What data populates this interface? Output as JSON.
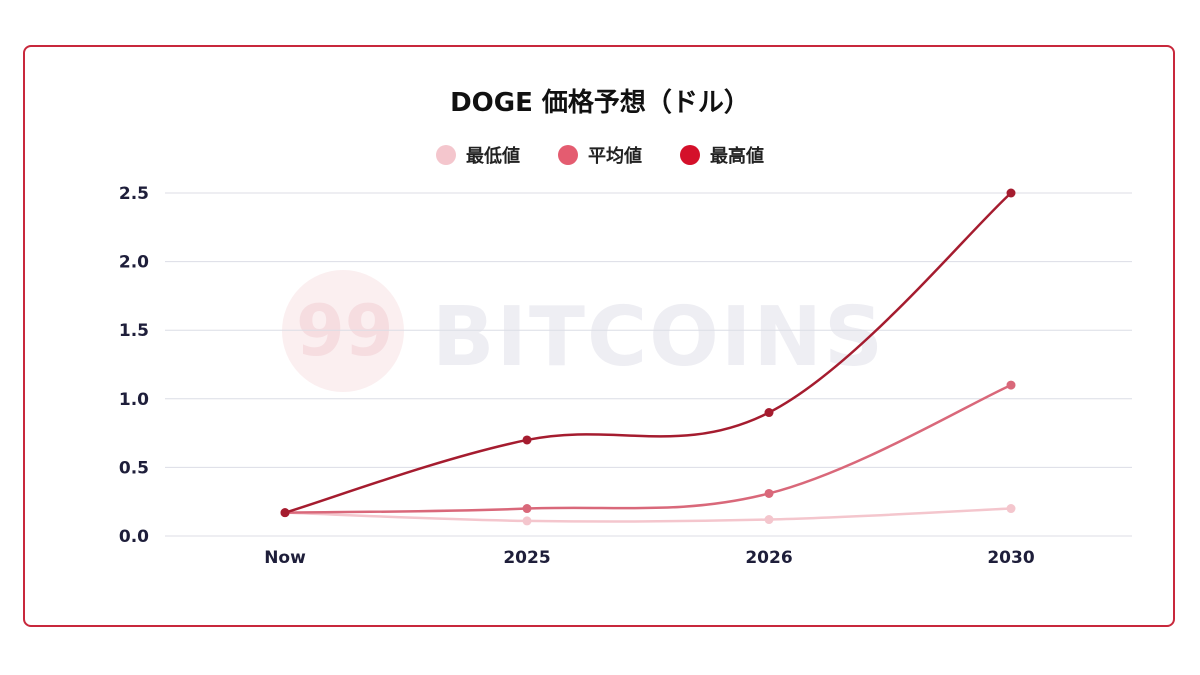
{
  "chart_data": {
    "type": "line",
    "title": "DOGE 価格予想（ドル）",
    "categories": [
      "Now",
      "2025",
      "2026",
      "2030"
    ],
    "y_ticks": [
      "0.0",
      "0.5",
      "1.0",
      "1.5",
      "2.0",
      "2.5"
    ],
    "ylim": [
      0,
      2.5
    ],
    "grid": true,
    "legend_position": "top-center",
    "series": [
      {
        "name": "最低値",
        "color": "#f4c6cd",
        "values": [
          0.17,
          0.11,
          0.12,
          0.2
        ]
      },
      {
        "name": "平均値",
        "color": "#d9687a",
        "values": [
          0.17,
          0.2,
          0.31,
          1.1
        ]
      },
      {
        "name": "最高値",
        "color": "#a51c2f",
        "values": [
          0.17,
          0.7,
          0.9,
          2.5
        ]
      }
    ]
  },
  "legend_colors": [
    "#f4c6cd",
    "#e45c70",
    "#d4102a"
  ],
  "watermark": {
    "logo": "99",
    "text": "BITCOINS"
  },
  "colors": {
    "border": "#c8283c",
    "grid": "#dcdde6",
    "axis_text": "#1e1e3a"
  }
}
